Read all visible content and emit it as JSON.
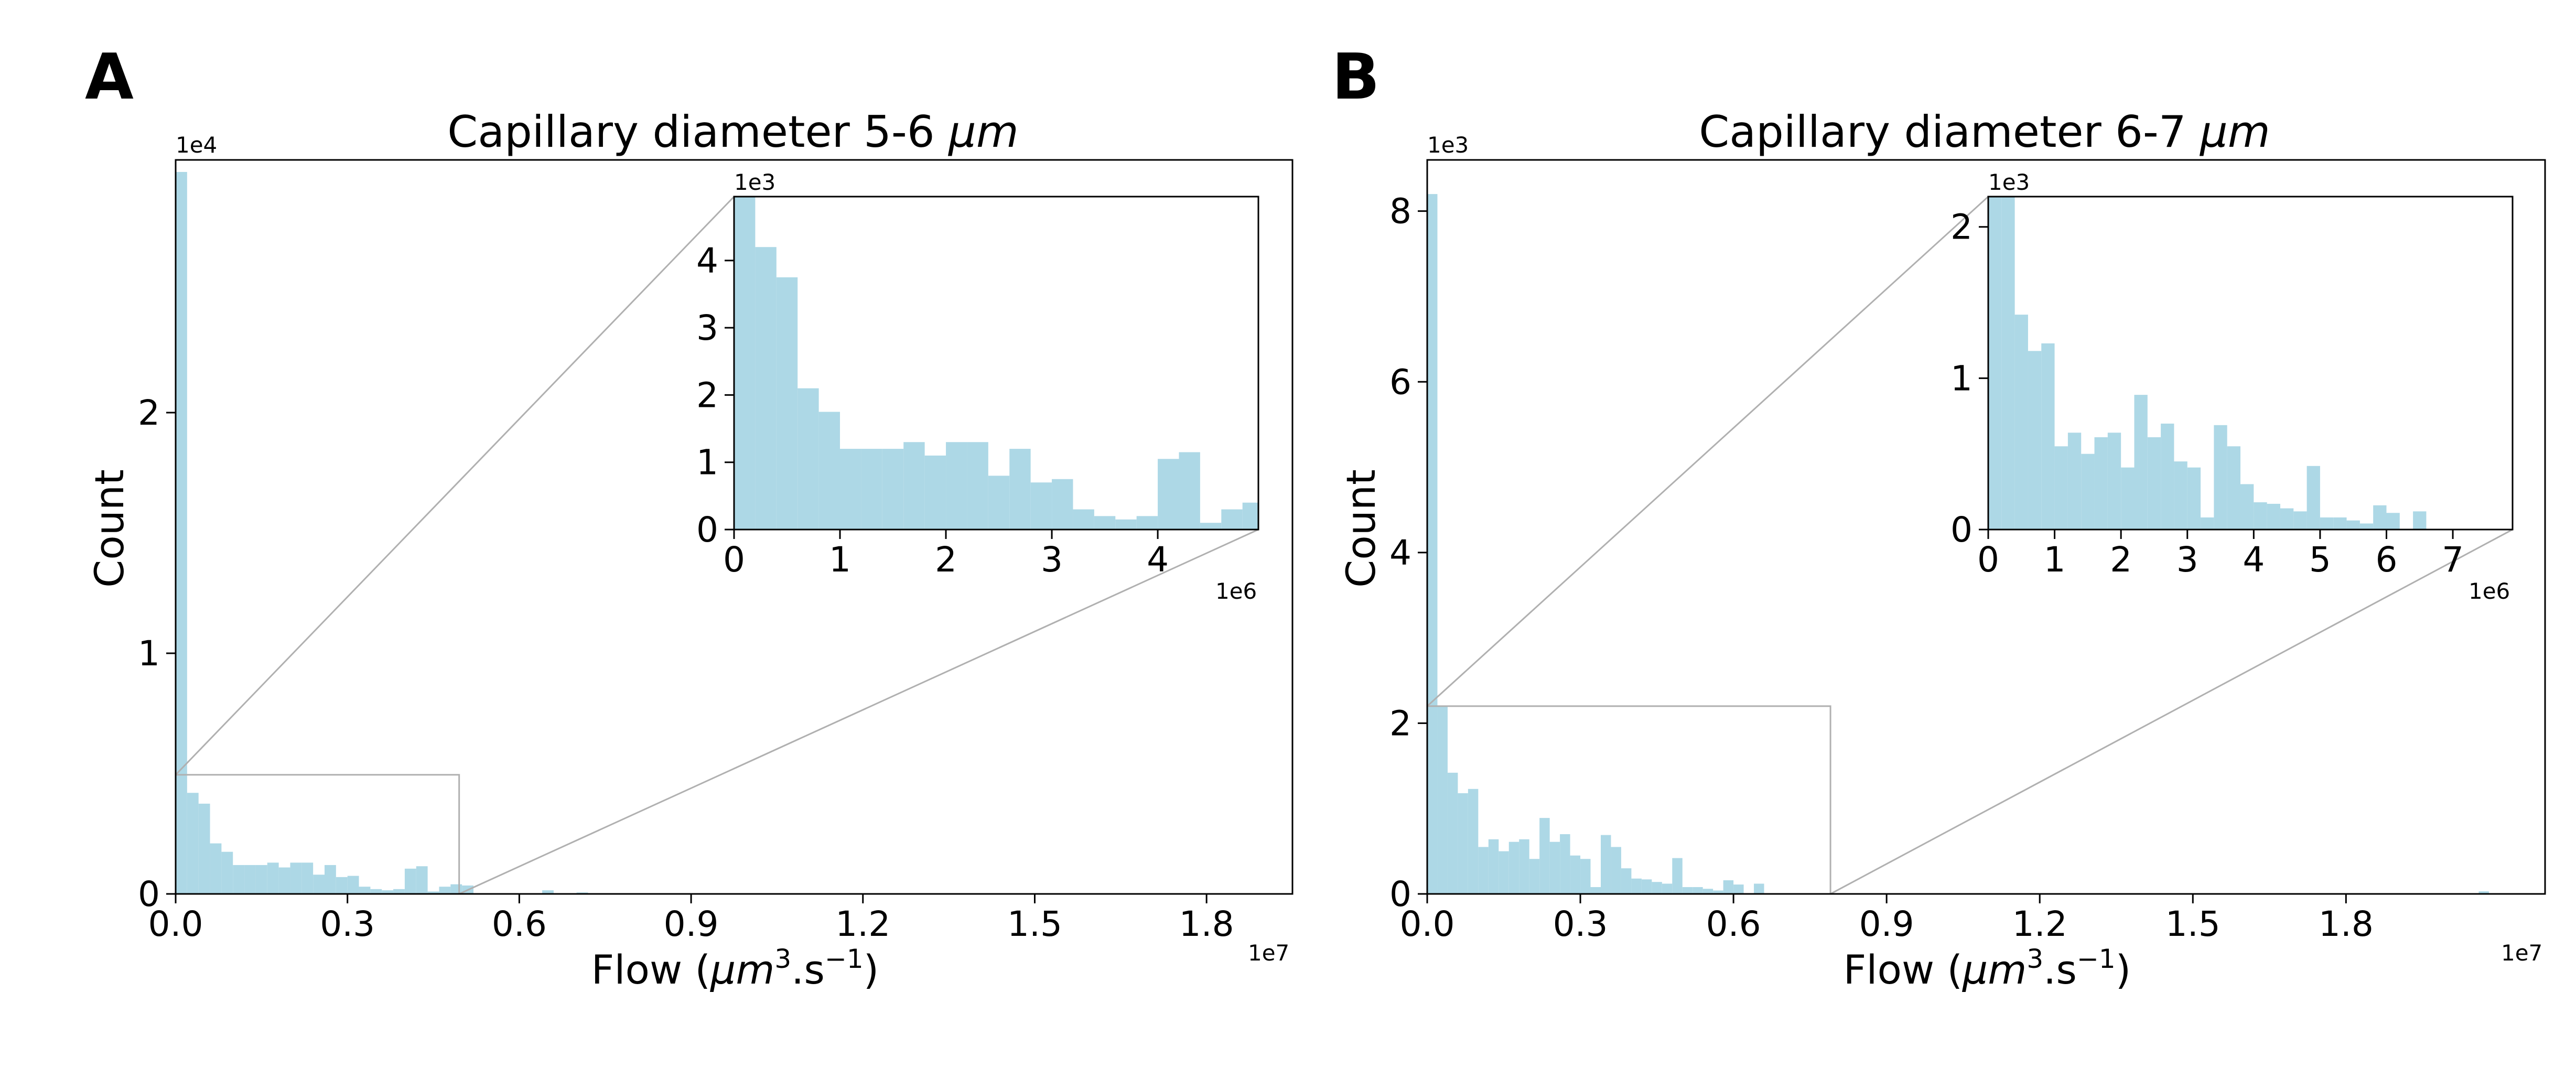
{
  "figure": {
    "panels": [
      {
        "letter": "A"
      },
      {
        "letter": "B"
      }
    ]
  },
  "chart_data": [
    {
      "type": "bar",
      "panel": "A",
      "title_main": "Capillary diameter 5-6 ",
      "title_unit": "μm",
      "xlabel_prefix": "Flow (",
      "xlabel_unit": "μm",
      "xlabel_exp1": "3",
      "xlabel_mid": ".s",
      "xlabel_exp2": "−1",
      "xlabel_suffix": ")",
      "ylabel": "Count",
      "x_multiplier": "1e7",
      "y_multiplier": "1e4",
      "xlim": [
        0,
        19500000
      ],
      "ylim": [
        0,
        30500
      ],
      "xticks": [
        0,
        3000000,
        6000000,
        9000000,
        12000000,
        15000000,
        18000000
      ],
      "xtick_labels": [
        "0.0",
        "0.3",
        "0.6",
        "0.9",
        "1.2",
        "1.5",
        "1.8"
      ],
      "yticks": [
        0,
        10000,
        20000
      ],
      "ytick_labels": [
        "0",
        "1",
        "2"
      ],
      "bar_color": "#add8e6",
      "bin_width": 200000,
      "bin_start": 0,
      "counts": [
        30000,
        4200,
        3750,
        2100,
        1750,
        1200,
        1200,
        1200,
        1300,
        1100,
        1300,
        1300,
        800,
        1200,
        700,
        750,
        300,
        200,
        150,
        200,
        1050,
        1150,
        100,
        300,
        400,
        350,
        0,
        0,
        0,
        0,
        0,
        0,
        150,
        0,
        0,
        60,
        0,
        0,
        0,
        0,
        0,
        0,
        0,
        0,
        0,
        0,
        0,
        0,
        0,
        0,
        0,
        0,
        0,
        0,
        0,
        0,
        0,
        0,
        0,
        0,
        0,
        0,
        0,
        0,
        0,
        0,
        0,
        0,
        0,
        0,
        0,
        0,
        0,
        0,
        0,
        0,
        0,
        0,
        0,
        0,
        0,
        0,
        0,
        0,
        0,
        0,
        0,
        0,
        0,
        0,
        0,
        0,
        0,
        0,
        0,
        0,
        0,
        0,
        0,
        0
      ],
      "inset": {
        "xlim": [
          0,
          4950000
        ],
        "ylim": [
          0,
          4950
        ],
        "xticks": [
          0,
          1000000,
          2000000,
          3000000,
          4000000
        ],
        "xtick_labels": [
          "0",
          "1",
          "2",
          "3",
          "4"
        ],
        "yticks": [
          0,
          1000,
          2000,
          3000,
          4000
        ],
        "ytick_labels": [
          "0",
          "1",
          "2",
          "3",
          "4"
        ],
        "x_multiplier": "1e6",
        "y_multiplier": "1e3"
      }
    },
    {
      "type": "bar",
      "panel": "B",
      "title_main": "Capillary diameter 6-7 ",
      "title_unit": "μm",
      "xlabel_prefix": "Flow (",
      "xlabel_unit": "μm",
      "xlabel_exp1": "3",
      "xlabel_mid": ".s",
      "xlabel_exp2": "−1",
      "xlabel_suffix": ")",
      "ylabel": "Count",
      "x_multiplier": "1e7",
      "y_multiplier": "1e3",
      "xlim": [
        0,
        21900000
      ],
      "ylim": [
        0,
        8600
      ],
      "xticks": [
        0,
        3000000,
        6000000,
        9000000,
        12000000,
        15000000,
        18000000
      ],
      "xtick_labels": [
        "0.0",
        "0.3",
        "0.6",
        "0.9",
        "1.2",
        "1.5",
        "1.8"
      ],
      "yticks": [
        0,
        2000,
        4000,
        6000,
        8000
      ],
      "ytick_labels": [
        "0",
        "2",
        "4",
        "6",
        "8"
      ],
      "bar_color": "#add8e6",
      "bin_width": 200000,
      "bin_start": 0,
      "counts": [
        8200,
        2200,
        1420,
        1180,
        1230,
        550,
        640,
        500,
        610,
        640,
        410,
        890,
        610,
        700,
        450,
        410,
        80,
        690,
        550,
        300,
        180,
        170,
        140,
        120,
        420,
        80,
        80,
        60,
        40,
        160,
        110,
        0,
        120,
        0,
        0,
        0,
        0,
        0,
        0,
        0,
        0,
        0,
        0,
        0,
        0,
        0,
        0,
        0,
        0,
        0,
        0,
        0,
        0,
        0,
        0,
        0,
        0,
        0,
        0,
        0,
        0,
        0,
        0,
        0,
        0,
        0,
        0,
        0,
        0,
        0,
        0,
        0,
        0,
        0,
        0,
        0,
        0,
        0,
        0,
        0,
        0,
        0,
        0,
        0,
        0,
        0,
        0,
        0,
        0,
        0,
        0,
        0,
        0,
        0,
        0,
        0,
        0,
        0,
        0,
        0,
        0,
        0,
        0,
        30
      ],
      "inset": {
        "xlim": [
          0,
          7900000
        ],
        "ylim": [
          0,
          2200
        ],
        "xticks": [
          0,
          1000000,
          2000000,
          3000000,
          4000000,
          5000000,
          6000000,
          7000000
        ],
        "xtick_labels": [
          "0",
          "1",
          "2",
          "3",
          "4",
          "5",
          "6",
          "7"
        ],
        "yticks": [
          0,
          1000,
          2000
        ],
        "ytick_labels": [
          "0",
          "1",
          "2"
        ],
        "x_multiplier": "1e6",
        "y_multiplier": "1e3"
      }
    }
  ]
}
